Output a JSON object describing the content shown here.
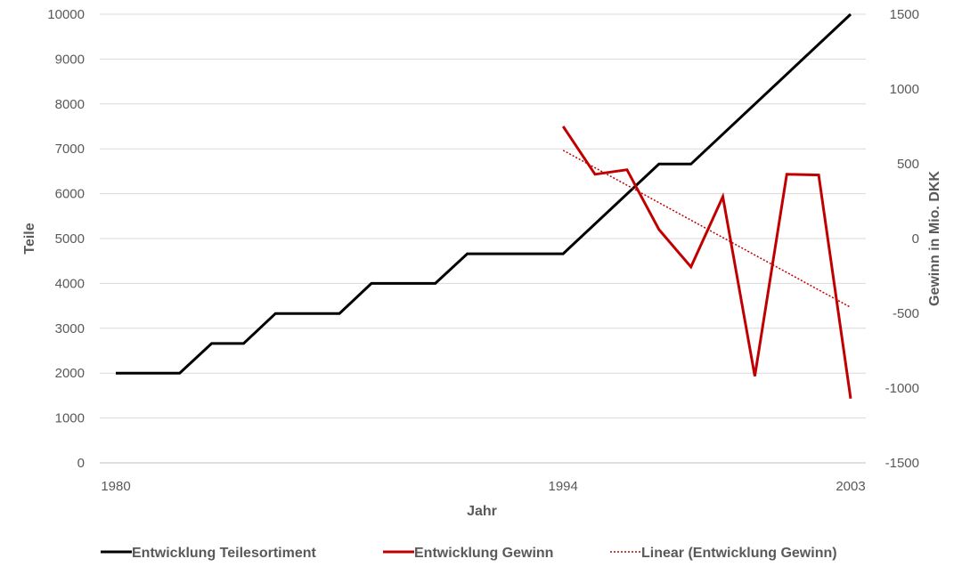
{
  "chart_data": {
    "type": "line",
    "title": "",
    "xlabel": "Jahr",
    "ylabel_left": "Teile",
    "ylabel_right": "Gewinn in Mio. DKK",
    "x_range": [
      1980,
      2003
    ],
    "x_tick_labels": [
      "1980",
      "1994",
      "2003"
    ],
    "y_left_range": [
      0,
      10000
    ],
    "y_left_ticks": [
      "0",
      "1000",
      "2000",
      "3000",
      "4000",
      "5000",
      "6000",
      "7000",
      "8000",
      "9000",
      "10000"
    ],
    "y_right_range": [
      -1500,
      1500
    ],
    "y_right_ticks": [
      "-1500",
      "-1000",
      "-500",
      "0",
      "500",
      "1000",
      "1500"
    ],
    "grid": true,
    "legend_position": "bottom",
    "series": [
      {
        "name": "Entwicklung Teilesortiment",
        "axis": "left",
        "color": "#000000",
        "style": "solid",
        "points": [
          [
            1980,
            2000
          ],
          [
            1982,
            2000
          ],
          [
            1983,
            2660
          ],
          [
            1984,
            2660
          ],
          [
            1985,
            3330
          ],
          [
            1987,
            3330
          ],
          [
            1988,
            4000
          ],
          [
            1990,
            4000
          ],
          [
            1991,
            4660
          ],
          [
            1994,
            4660
          ],
          [
            1997,
            6660
          ],
          [
            1998,
            6660
          ],
          [
            2003,
            10000
          ]
        ]
      },
      {
        "name": "Entwicklung Gewinn",
        "axis": "right",
        "color": "#C00000",
        "style": "solid",
        "points": [
          [
            1994,
            750
          ],
          [
            1995,
            430
          ],
          [
            1996,
            460
          ],
          [
            1997,
            60
          ],
          [
            1998,
            -190
          ],
          [
            1999,
            280
          ],
          [
            2000,
            -920
          ],
          [
            2001,
            430
          ],
          [
            2002,
            425
          ],
          [
            2003,
            -1070
          ]
        ]
      },
      {
        "name": "Linear (Entwicklung Gewinn)",
        "axis": "right",
        "color": "#C00000",
        "style": "dotted",
        "points": [
          [
            1994,
            590
          ],
          [
            2003,
            -460
          ]
        ]
      }
    ]
  }
}
